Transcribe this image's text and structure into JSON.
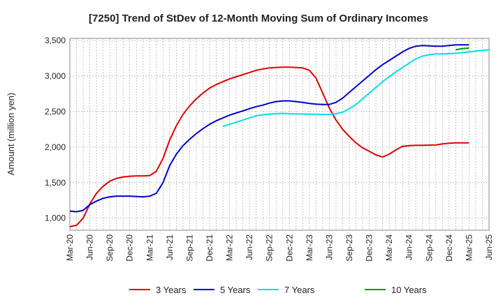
{
  "chart_data": {
    "type": "line",
    "title": "[7250]  Trend of StDev of 12-Month Moving Sum of Ordinary Incomes",
    "ylabel": "Amount (million yen)",
    "xlabel": "",
    "ylim": [
      830,
      3530
    ],
    "y_ticks": [
      1000,
      1500,
      2000,
      2500,
      3000,
      3500
    ],
    "y_tick_labels": [
      "1,000",
      "1,500",
      "2,000",
      "2,500",
      "3,000",
      "3,500"
    ],
    "x_tick_labels": [
      "Mar-20",
      "Jun-20",
      "Sep-20",
      "Dec-20",
      "Mar-21",
      "Jun-21",
      "Sep-21",
      "Dec-21",
      "Mar-22",
      "Jun-22",
      "Sep-22",
      "Dec-22",
      "Mar-23",
      "Jun-23",
      "Sep-23",
      "Dec-23",
      "Mar-24",
      "Jun-24",
      "Sep-24",
      "Dec-24",
      "Mar-25",
      "Jun-25"
    ],
    "grid": true,
    "legend_position": "bottom",
    "series": [
      {
        "name": "3 Years",
        "color": "#e00000",
        "start": "Mar-20",
        "values": [
          880,
          900,
          1000,
          1200,
          1350,
          1450,
          1520,
          1560,
          1580,
          1590,
          1595,
          1595,
          1600,
          1660,
          1840,
          2100,
          2300,
          2460,
          2580,
          2680,
          2760,
          2830,
          2880,
          2920,
          2960,
          2990,
          3020,
          3050,
          3080,
          3100,
          3115,
          3120,
          3125,
          3125,
          3120,
          3115,
          3080,
          2970,
          2760,
          2550,
          2380,
          2250,
          2150,
          2060,
          1990,
          1940,
          1890,
          1860,
          1900,
          1960,
          2010,
          2020,
          2025,
          2025,
          2028,
          2030,
          2045,
          2055,
          2060,
          2060,
          2060
        ]
      },
      {
        "name": "5 Years",
        "color": "#0000cc",
        "start": "Mar-20",
        "values": [
          1100,
          1090,
          1110,
          1190,
          1240,
          1280,
          1300,
          1310,
          1310,
          1310,
          1305,
          1300,
          1310,
          1350,
          1500,
          1740,
          1900,
          2020,
          2110,
          2190,
          2260,
          2320,
          2370,
          2410,
          2450,
          2480,
          2510,
          2540,
          2570,
          2590,
          2620,
          2640,
          2650,
          2650,
          2640,
          2630,
          2615,
          2605,
          2600,
          2600,
          2630,
          2690,
          2770,
          2850,
          2930,
          3010,
          3090,
          3160,
          3220,
          3280,
          3340,
          3390,
          3420,
          3430,
          3425,
          3420,
          3420,
          3430,
          3440,
          3440,
          3440
        ]
      },
      {
        "name": "7 Years",
        "color": "#00e0e0",
        "start": "Feb-22",
        "values": [
          2290,
          2320,
          2350,
          2380,
          2410,
          2440,
          2455,
          2465,
          2470,
          2475,
          2470,
          2468,
          2466,
          2465,
          2462,
          2460,
          2460,
          2470,
          2490,
          2540,
          2600,
          2680,
          2760,
          2840,
          2920,
          2990,
          3060,
          3120,
          3180,
          3240,
          3280,
          3300,
          3310,
          3310,
          3315,
          3320,
          3330,
          3340,
          3350,
          3360,
          3370
        ]
      },
      {
        "name": "10 Years",
        "color": "#009900",
        "start": "Jan-25",
        "values": [
          3370,
          3385,
          3395
        ]
      }
    ]
  }
}
